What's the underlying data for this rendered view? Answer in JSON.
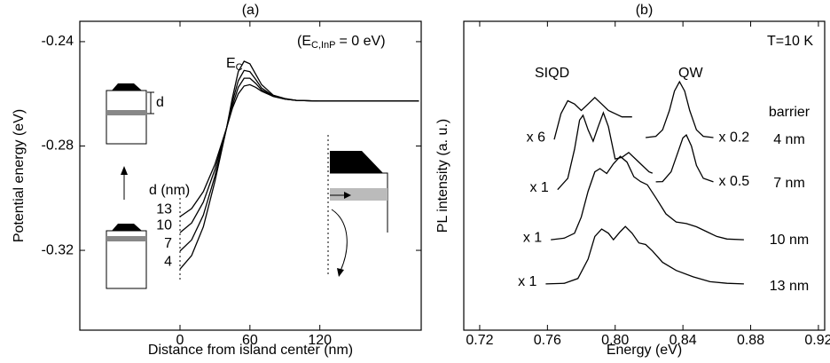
{
  "chart_data": [
    {
      "type": "line",
      "title": "(a)",
      "x_label": "Distance from island center (nm)",
      "y_label": "Potential energy (eV)",
      "xlim": [
        -86,
        207
      ],
      "ylim": [
        -0.3506,
        -0.2322
      ],
      "xticks": [
        0,
        60,
        120
      ],
      "yticks": [
        -0.32,
        -0.28,
        -0.24
      ],
      "x": [
        0,
        10,
        20,
        30,
        40,
        45,
        50,
        55,
        60,
        65,
        70,
        80,
        90,
        100,
        120,
        150,
        205
      ],
      "series": [
        {
          "name": "13",
          "color": "#000000",
          "values": [
            -0.3071,
            -0.304,
            -0.2975,
            -0.287,
            -0.273,
            -0.2655,
            -0.26,
            -0.257,
            -0.2565,
            -0.2575,
            -0.259,
            -0.261,
            -0.262,
            -0.2625,
            -0.2628,
            -0.2628,
            -0.2628
          ]
        },
        {
          "name": "10",
          "color": "#000000",
          "values": [
            -0.3132,
            -0.3095,
            -0.3015,
            -0.289,
            -0.273,
            -0.2645,
            -0.2575,
            -0.254,
            -0.254,
            -0.256,
            -0.2585,
            -0.261,
            -0.262,
            -0.2625,
            -0.2628,
            -0.2628,
            -0.2628
          ]
        },
        {
          "name": "7",
          "color": "#000000",
          "values": [
            -0.3203,
            -0.316,
            -0.3065,
            -0.2915,
            -0.273,
            -0.263,
            -0.255,
            -0.251,
            -0.2515,
            -0.2545,
            -0.2578,
            -0.2608,
            -0.262,
            -0.2625,
            -0.2628,
            -0.2628,
            -0.2628
          ]
        },
        {
          "name": "4",
          "color": "#000000",
          "values": [
            -0.3272,
            -0.322,
            -0.311,
            -0.2935,
            -0.273,
            -0.2615,
            -0.2515,
            -0.2475,
            -0.2485,
            -0.2525,
            -0.2565,
            -0.2605,
            -0.2618,
            -0.2625,
            -0.2628,
            -0.2628,
            -0.2628
          ]
        }
      ],
      "annotations": {
        "band_edge": {
          "main": "E",
          "sub": "C"
        },
        "reference": {
          "pre": "(E",
          "sub": "C,InP",
          "post": "= 0 eV)"
        },
        "legend_title": "d (nm)",
        "thickness": "d"
      }
    },
    {
      "type": "line",
      "title": "(b)",
      "x_label": "Energy (eV)",
      "y_label": "PL intensity (a. u.)",
      "xlim": [
        0.7106,
        0.9237
      ],
      "ylim": [
        0,
        9.56
      ],
      "xticks": [
        0.72,
        0.76,
        {
          "value": 0.8,
          "label": "0.80"
        },
        0.84,
        0.88,
        0.92
      ],
      "series": [
        {
          "name": "x 6",
          "color": "#000000",
          "x": [
            0.764,
            0.768,
            0.772,
            0.776,
            0.78,
            0.784,
            0.788,
            0.792,
            0.796,
            0.8,
            0.804,
            0.808,
            0.81
          ],
          "values": [
            5.9,
            6.7,
            7.1,
            7.0,
            6.8,
            7.0,
            7.2,
            7.0,
            6.8,
            6.7,
            6.6,
            6.6,
            6.6
          ]
        },
        {
          "name": "x 0.2",
          "color": "#000000",
          "x": [
            0.818,
            0.824,
            0.828,
            0.832,
            0.835,
            0.838,
            0.841,
            0.844,
            0.848,
            0.852,
            0.858
          ],
          "values": [
            5.96,
            6.0,
            6.2,
            6.8,
            7.4,
            7.69,
            7.4,
            6.8,
            6.2,
            6.0,
            5.96
          ]
        },
        {
          "name": "x 1",
          "color": "#000000",
          "x": [
            0.766,
            0.772,
            0.776,
            0.779,
            0.781,
            0.784,
            0.787,
            0.79,
            0.793,
            0.796,
            0.8,
            0.804,
            0.808,
            0.812,
            0.816,
            0.82,
            0.822
          ],
          "values": [
            4.35,
            4.7,
            5.6,
            6.5,
            6.65,
            6.2,
            5.85,
            6.3,
            6.73,
            6.3,
            5.3,
            5.35,
            5.5,
            5.3,
            5.1,
            4.9,
            4.86
          ]
        },
        {
          "name": "x 0.5",
          "color": "#000000",
          "x": [
            0.824,
            0.828,
            0.833,
            0.837,
            0.84,
            0.842,
            0.845,
            0.848,
            0.852,
            0.858
          ],
          "values": [
            4.59,
            4.6,
            4.9,
            5.5,
            5.95,
            6.04,
            5.7,
            5.1,
            4.7,
            4.59
          ]
        },
        {
          "name": "x 1",
          "color": "#000000",
          "x": [
            0.762,
            0.77,
            0.776,
            0.78,
            0.784,
            0.788,
            0.791,
            0.795,
            0.799,
            0.803,
            0.807,
            0.811,
            0.815,
            0.819,
            0.824,
            0.83,
            0.836,
            0.842,
            0.848,
            0.854,
            0.86,
            0.866,
            0.876
          ],
          "values": [
            2.8,
            2.85,
            3.0,
            3.5,
            4.3,
            4.9,
            5.0,
            4.85,
            5.15,
            5.38,
            5.2,
            4.75,
            4.6,
            4.5,
            4.1,
            3.6,
            3.35,
            3.3,
            3.2,
            3.05,
            2.9,
            2.82,
            2.8
          ]
        },
        {
          "name": "x 1",
          "color": "#000000",
          "x": [
            0.759,
            0.77,
            0.778,
            0.784,
            0.788,
            0.792,
            0.796,
            0.799,
            0.803,
            0.806,
            0.81,
            0.814,
            0.818,
            0.822,
            0.828,
            0.836,
            0.846,
            0.856,
            0.866,
            0.876
          ],
          "values": [
            1.43,
            1.45,
            1.6,
            2.2,
            2.9,
            3.13,
            3.0,
            2.8,
            3.05,
            3.21,
            3.0,
            2.7,
            2.65,
            2.45,
            2.1,
            1.85,
            1.65,
            1.5,
            1.45,
            1.43
          ]
        }
      ],
      "annotations": {
        "temperature": "T=10 K",
        "dots_peak": "SIQD",
        "well_peak": "QW",
        "rows_title": "barrier",
        "rows": [
          "4 nm",
          "7 nm",
          "10 nm",
          "13 nm"
        ]
      }
    }
  ]
}
